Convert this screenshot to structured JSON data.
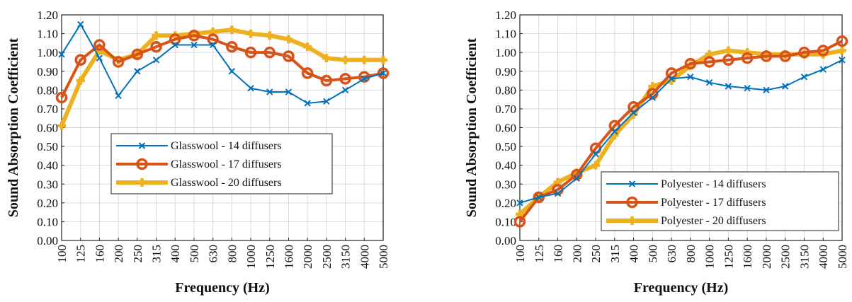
{
  "chart_data": [
    {
      "type": "line",
      "x": [
        "100",
        "125",
        "160",
        "200",
        "250",
        "315",
        "400",
        "500",
        "630",
        "800",
        "1000",
        "1250",
        "1600",
        "2000",
        "2500",
        "3150",
        "4000",
        "5000"
      ],
      "xlabel": "Frequency (Hz)",
      "ylabel": "Sound Absorption Coefficient",
      "ylim": [
        0,
        1.2
      ],
      "yticks": [
        "0.00",
        "0.10",
        "0.20",
        "0.30",
        "0.40",
        "0.50",
        "0.60",
        "0.70",
        "0.80",
        "0.90",
        "1.00",
        "1.10",
        "1.20"
      ],
      "grid": true,
      "legend_position": "bottom-center",
      "series": [
        {
          "name": "Glasswool - 14 diffusers",
          "color": "#0072BD",
          "marker": "x",
          "values": [
            0.99,
            1.15,
            0.97,
            0.77,
            0.9,
            0.96,
            1.04,
            1.04,
            1.04,
            0.9,
            0.81,
            0.79,
            0.79,
            0.73,
            0.74,
            0.8,
            0.86,
            0.89
          ]
        },
        {
          "name": "Glasswool - 17 diffusers",
          "color": "#D95319",
          "marker": "circle",
          "values": [
            0.76,
            0.96,
            1.04,
            0.95,
            0.99,
            1.03,
            1.07,
            1.09,
            1.07,
            1.03,
            1.0,
            1.0,
            0.98,
            0.89,
            0.85,
            0.86,
            0.87,
            0.89
          ]
        },
        {
          "name": "Glasswool - 20 diffusers",
          "color": "#EDB120",
          "marker": "plus",
          "values": [
            0.61,
            0.85,
            1.01,
            0.96,
            0.99,
            1.09,
            1.09,
            1.1,
            1.11,
            1.12,
            1.1,
            1.09,
            1.07,
            1.03,
            0.97,
            0.96,
            0.96,
            0.96
          ]
        }
      ]
    },
    {
      "type": "line",
      "x": [
        "100",
        "125",
        "160",
        "200",
        "250",
        "315",
        "400",
        "500",
        "630",
        "800",
        "1000",
        "1250",
        "1600",
        "2000",
        "2500",
        "3150",
        "4000",
        "5000"
      ],
      "xlabel": "Frequency (Hz)",
      "ylabel": "Sound Absorption Coefficient",
      "ylim": [
        0,
        1.2
      ],
      "yticks": [
        "0.00",
        "0.10",
        "0.20",
        "0.30",
        "0.40",
        "0.50",
        "0.60",
        "0.70",
        "0.80",
        "0.90",
        "1.00",
        "1.10",
        "1.20"
      ],
      "grid": true,
      "legend_position": "bottom-right",
      "series": [
        {
          "name": "Polyester - 14 diffusers",
          "color": "#0072BD",
          "marker": "x",
          "values": [
            0.2,
            0.23,
            0.25,
            0.33,
            0.46,
            0.58,
            0.68,
            0.76,
            0.86,
            0.87,
            0.84,
            0.82,
            0.81,
            0.8,
            0.82,
            0.87,
            0.91,
            0.96
          ]
        },
        {
          "name": "Polyester - 17 diffusers",
          "color": "#D95319",
          "marker": "circle",
          "values": [
            0.1,
            0.23,
            0.27,
            0.35,
            0.49,
            0.61,
            0.71,
            0.78,
            0.89,
            0.94,
            0.95,
            0.96,
            0.97,
            0.98,
            0.98,
            1.0,
            1.01,
            1.06
          ]
        },
        {
          "name": "Polyester - 20 diffusers",
          "color": "#EDB120",
          "marker": "plus",
          "values": [
            0.14,
            0.23,
            0.31,
            0.36,
            0.4,
            0.56,
            0.67,
            0.82,
            0.85,
            0.93,
            0.99,
            1.01,
            1.0,
            0.99,
            0.99,
            0.99,
            0.99,
            1.01
          ]
        }
      ]
    }
  ]
}
